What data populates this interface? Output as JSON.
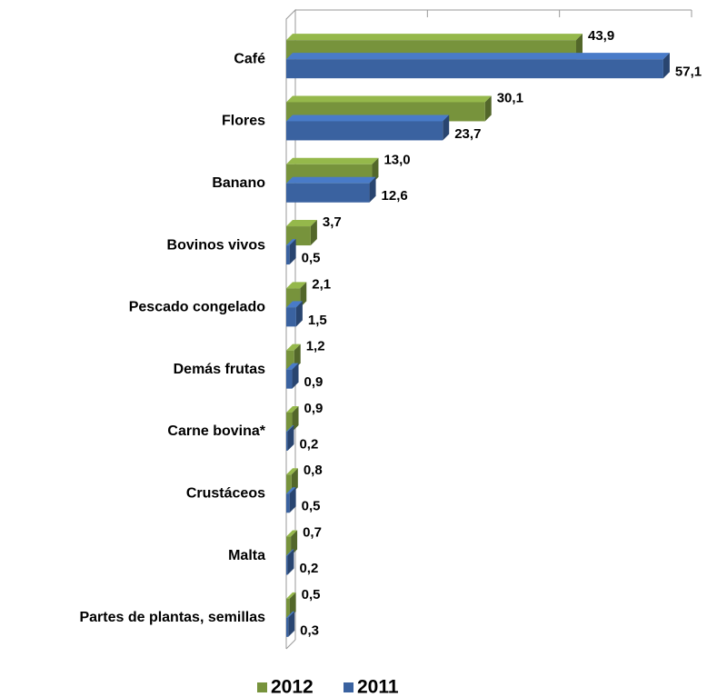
{
  "chart_data": {
    "type": "bar3d_horizontal",
    "categories": [
      "Café",
      "Flores",
      "Banano",
      "Bovinos vivos",
      "Pescado congelado",
      "Demás frutas",
      "Carne bovina*",
      "Crustáceos",
      "Malta",
      "Partes de plantas, semillas"
    ],
    "series": [
      {
        "name": "2012",
        "color": "#77933c",
        "values": [
          43.9,
          30.1,
          13.0,
          3.7,
          2.1,
          1.2,
          0.9,
          0.8,
          0.7,
          0.5
        ],
        "value_labels": [
          "43,9",
          "30,1",
          "13,0",
          "3,7",
          "2,1",
          "1,2",
          "0,9",
          "0,8",
          "0,7",
          "0,5"
        ]
      },
      {
        "name": "2011",
        "color": "#3a62a0",
        "values": [
          57.1,
          23.7,
          12.6,
          0.5,
          1.5,
          0.9,
          0.2,
          0.5,
          0.2,
          0.3
        ],
        "value_labels": [
          "57,1",
          "23,7",
          "12,6",
          "0,5",
          "1,5",
          "0,9",
          "0,2",
          "0,5",
          "0,2",
          "0,3"
        ]
      }
    ],
    "xlim": [
      0,
      60
    ],
    "xticks": [
      0,
      20,
      40,
      60
    ],
    "grid": true,
    "legend": "bottom"
  }
}
